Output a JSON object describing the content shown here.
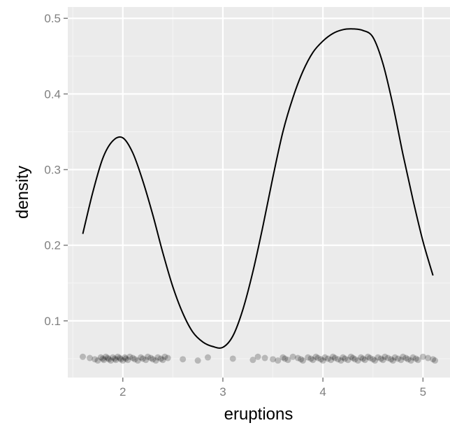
{
  "chart_data": {
    "type": "line",
    "title": "",
    "xlabel": "eruptions",
    "ylabel": "density",
    "xlim": [
      1.45,
      5.27
    ],
    "ylim": [
      0.025,
      0.515
    ],
    "grid": true,
    "background_color": "#ebebeb",
    "grid_color": "#ffffff",
    "line_color": "#000000",
    "rug_point_color": "#000000",
    "x_ticks": [
      2,
      3,
      4,
      5
    ],
    "x_tick_labels": [
      "2",
      "3",
      "4",
      "5"
    ],
    "y_ticks": [
      0.1,
      0.2,
      0.3,
      0.4,
      0.5
    ],
    "y_tick_labels": [
      "0.1",
      "0.2",
      "0.3",
      "0.4",
      "0.5"
    ],
    "series": [
      {
        "x": [
          1.6,
          1.7,
          1.8,
          1.9,
          2.0,
          2.1,
          2.2,
          2.3,
          2.4,
          2.5,
          2.6,
          2.7,
          2.8,
          2.9,
          3.0,
          3.1,
          3.2,
          3.3,
          3.4,
          3.5,
          3.6,
          3.7,
          3.8,
          3.9,
          4.0,
          4.1,
          4.2,
          4.3,
          4.4,
          4.5,
          4.6,
          4.7,
          4.8,
          4.9,
          5.0,
          5.1
        ],
        "y": [
          0.215,
          0.27,
          0.315,
          0.338,
          0.342,
          0.322,
          0.285,
          0.24,
          0.19,
          0.145,
          0.11,
          0.085,
          0.072,
          0.066,
          0.065,
          0.08,
          0.115,
          0.165,
          0.225,
          0.29,
          0.35,
          0.395,
          0.43,
          0.455,
          0.47,
          0.48,
          0.485,
          0.486,
          0.484,
          0.475,
          0.44,
          0.385,
          0.32,
          0.26,
          0.205,
          0.16
        ]
      }
    ],
    "rug": {
      "y": 0.05,
      "x": [
        1.6,
        1.67,
        1.72,
        1.75,
        1.78,
        1.8,
        1.81,
        1.83,
        1.85,
        1.86,
        1.88,
        1.9,
        1.92,
        1.93,
        1.95,
        1.97,
        1.98,
        2.0,
        2.02,
        2.03,
        2.05,
        2.07,
        2.1,
        2.12,
        2.15,
        2.18,
        2.2,
        2.23,
        2.25,
        2.28,
        2.3,
        2.33,
        2.35,
        2.38,
        2.4,
        2.42,
        2.45,
        2.6,
        2.75,
        2.85,
        3.1,
        3.3,
        3.35,
        3.42,
        3.5,
        3.55,
        3.6,
        3.62,
        3.65,
        3.7,
        3.75,
        3.78,
        3.8,
        3.85,
        3.88,
        3.9,
        3.93,
        3.95,
        3.98,
        4.0,
        4.02,
        4.05,
        4.08,
        4.1,
        4.12,
        4.15,
        4.18,
        4.2,
        4.22,
        4.25,
        4.28,
        4.3,
        4.32,
        4.35,
        4.38,
        4.4,
        4.42,
        4.45,
        4.47,
        4.5,
        4.52,
        4.55,
        4.58,
        4.6,
        4.62,
        4.65,
        4.68,
        4.7,
        4.72,
        4.75,
        4.78,
        4.8,
        4.83,
        4.85,
        4.88,
        4.9,
        4.93,
        4.95,
        5.0,
        5.05,
        5.1,
        5.12
      ]
    }
  }
}
